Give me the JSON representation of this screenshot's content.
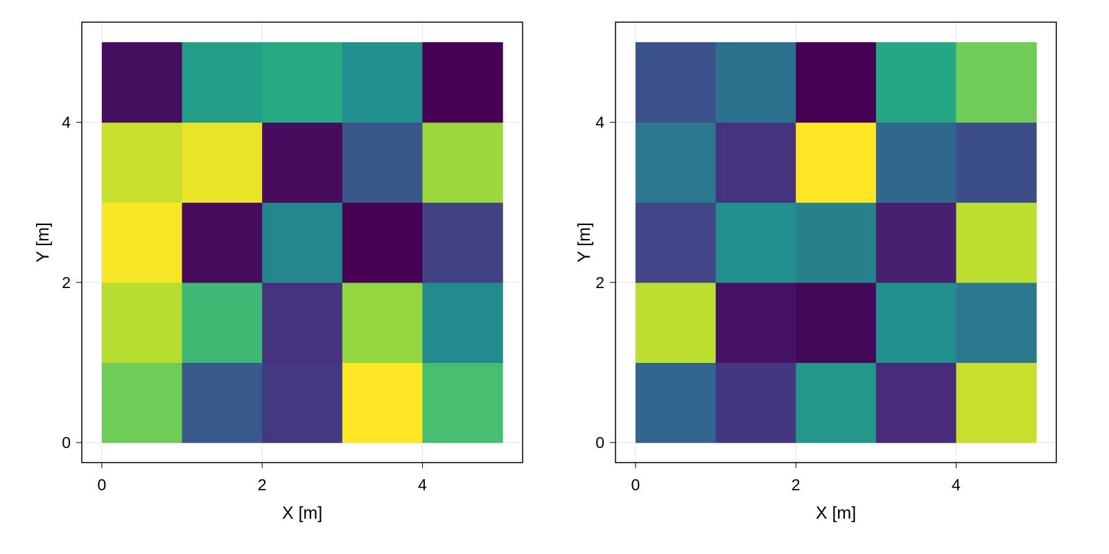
{
  "colormap": "viridis",
  "chart_data": [
    {
      "type": "heatmap",
      "title": "",
      "xlabel": "X [m]",
      "ylabel": "Y [m]",
      "xlim": [
        -0.25,
        5.25
      ],
      "ylim": [
        -0.25,
        5.25
      ],
      "xticks": [
        0,
        2,
        4
      ],
      "yticks": [
        0,
        2,
        4
      ],
      "grid": true,
      "x_edges": [
        0,
        1,
        2,
        3,
        4,
        5
      ],
      "y_edges": [
        0,
        1,
        2,
        3,
        4,
        5
      ],
      "value_scale": "normalized 0-1 (no colorbar shown)",
      "rows_from_y0": [
        [
          0.78,
          0.28,
          0.17,
          1.0,
          0.7
        ],
        [
          0.89,
          0.68,
          0.15,
          0.84,
          0.48
        ],
        [
          0.99,
          0.03,
          0.46,
          0.0,
          0.2
        ],
        [
          0.92,
          0.97,
          0.03,
          0.27,
          0.85
        ],
        [
          0.04,
          0.56,
          0.61,
          0.5,
          0.0
        ]
      ]
    },
    {
      "type": "heatmap",
      "title": "",
      "xlabel": "X [m]",
      "ylabel": "Y [m]",
      "xlim": [
        -0.25,
        5.25
      ],
      "ylim": [
        -0.25,
        5.25
      ],
      "xticks": [
        0,
        2,
        4
      ],
      "yticks": [
        0,
        2,
        4
      ],
      "grid": true,
      "x_edges": [
        0,
        1,
        2,
        3,
        4,
        5
      ],
      "y_edges": [
        0,
        1,
        2,
        3,
        4,
        5
      ],
      "value_scale": "normalized 0-1 (no colorbar shown)",
      "rows_from_y0": [
        [
          0.33,
          0.16,
          0.53,
          0.12,
          0.92
        ],
        [
          0.9,
          0.05,
          0.02,
          0.5,
          0.4
        ],
        [
          0.21,
          0.49,
          0.44,
          0.09,
          0.9
        ],
        [
          0.4,
          0.15,
          1.0,
          0.34,
          0.24
        ],
        [
          0.25,
          0.38,
          0.0,
          0.6,
          0.78
        ]
      ]
    }
  ]
}
